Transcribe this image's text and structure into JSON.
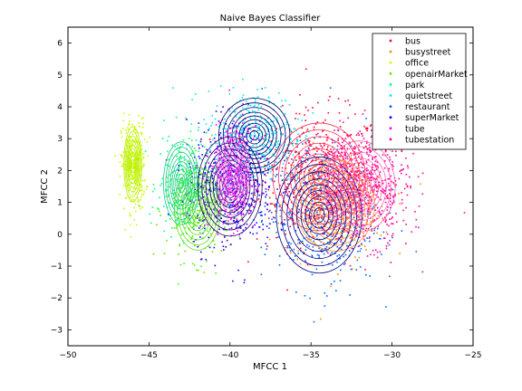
{
  "chart_data": {
    "type": "scatter",
    "title": "Naive Bayes Classifier",
    "xlabel": "MFCC 1",
    "ylabel": "MFCC 2",
    "xlim": [
      -50,
      -25
    ],
    "ylim": [
      -3.5,
      6.5
    ],
    "xticks": [
      -50,
      -45,
      -40,
      -35,
      -30,
      -25
    ],
    "yticks": [
      -3,
      -2,
      -1,
      0,
      1,
      2,
      3,
      4,
      5,
      6
    ],
    "grid": false,
    "legend_position": "top-right",
    "series": [
      {
        "name": "bus",
        "color": "#ff0033",
        "marker": "dot",
        "cluster": {
          "cx": -34.5,
          "cy": 1.8,
          "sx": 2.6,
          "sy": 1.3
        },
        "contour_color": "#ff3355"
      },
      {
        "name": "busystreet",
        "color": "#ff8800",
        "marker": "dot",
        "cluster": {
          "cx": -33.5,
          "cy": 0.9,
          "sx": 2.2,
          "sy": 1.1
        },
        "contour_color": "#ff9933"
      },
      {
        "name": "office",
        "color": "#ccff00",
        "marker": "dot",
        "cluster": {
          "cx": -46.0,
          "cy": 2.2,
          "sx": 0.5,
          "sy": 0.9
        },
        "contour_color": "#bbee00"
      },
      {
        "name": "openairMarket",
        "color": "#55ee00",
        "marker": "dot",
        "cluster": {
          "cx": -42.0,
          "cy": 0.8,
          "sx": 1.3,
          "sy": 1.0
        },
        "contour_color": "#66dd22"
      },
      {
        "name": "park",
        "color": "#00ff88",
        "marker": "dot",
        "cluster": {
          "cx": -43.0,
          "cy": 1.6,
          "sx": 1.0,
          "sy": 1.0
        },
        "contour_color": "#22cc88"
      },
      {
        "name": "quietstreet",
        "color": "#00e5ff",
        "marker": "dot",
        "cluster": {
          "cx": -38.5,
          "cy": 3.1,
          "sx": 2.0,
          "sy": 0.9
        },
        "contour_color": "#000066"
      },
      {
        "name": "restaurant",
        "color": "#0066ff",
        "marker": "dot",
        "cluster": {
          "cx": -34.5,
          "cy": 0.6,
          "sx": 2.4,
          "sy": 1.4
        },
        "contour_color": "#000088"
      },
      {
        "name": "superMarket",
        "color": "#2200ff",
        "marker": "dot",
        "cluster": {
          "cx": -40.0,
          "cy": 1.5,
          "sx": 1.8,
          "sy": 1.2
        },
        "contour_color": "#1a0066"
      },
      {
        "name": "tube",
        "color": "#ff00ff",
        "marker": "dot",
        "cluster": {
          "cx": -39.8,
          "cy": 1.9,
          "sx": 0.9,
          "sy": 1.0
        },
        "contour_color": "#ee66ee"
      },
      {
        "name": "tubestation",
        "color": "#ff0099",
        "marker": "dot",
        "cluster": {
          "cx": -32.0,
          "cy": 1.5,
          "sx": 2.0,
          "sy": 1.1
        },
        "contour_color": "#ff66bb"
      }
    ]
  }
}
